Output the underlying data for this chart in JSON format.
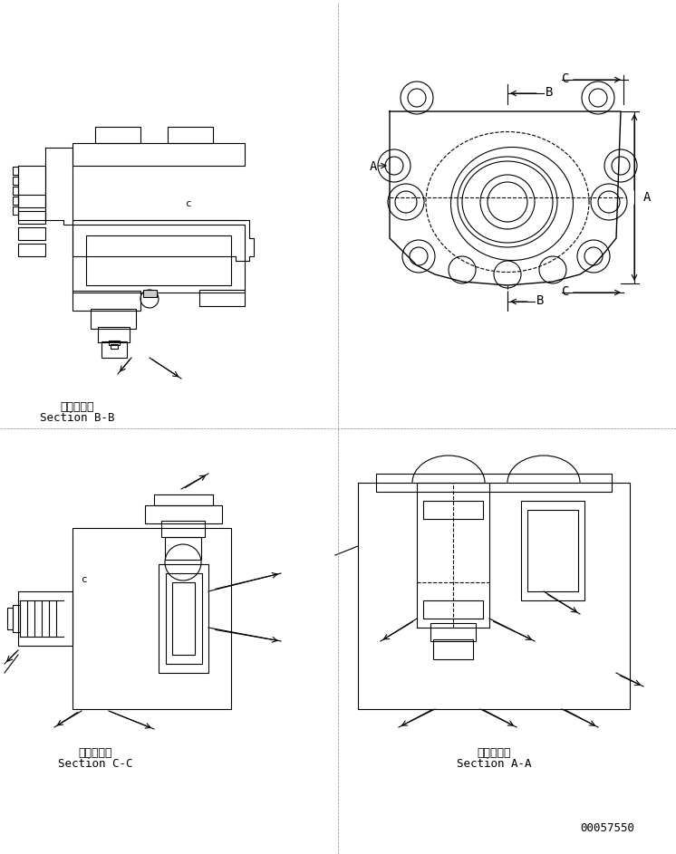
{
  "title": "",
  "background_color": "#ffffff",
  "line_color": "#000000",
  "line_width": 0.8,
  "fig_width": 7.46,
  "fig_height": 9.43,
  "labels": {
    "bb_japanese": "断面Ｂ－Ｂ",
    "bb_english": "Section B-B",
    "cc_japanese": "断面Ｃ－Ｃ",
    "cc_english": "Section C-C",
    "aa_japanese": "断面Ａ－Ａ",
    "aa_english": "Section A-A",
    "part_number": "00057550"
  },
  "label_A_top": "C",
  "label_B_top": "B",
  "label_A_side": "A",
  "label_B_bottom": "B",
  "label_C_bottom": "C"
}
